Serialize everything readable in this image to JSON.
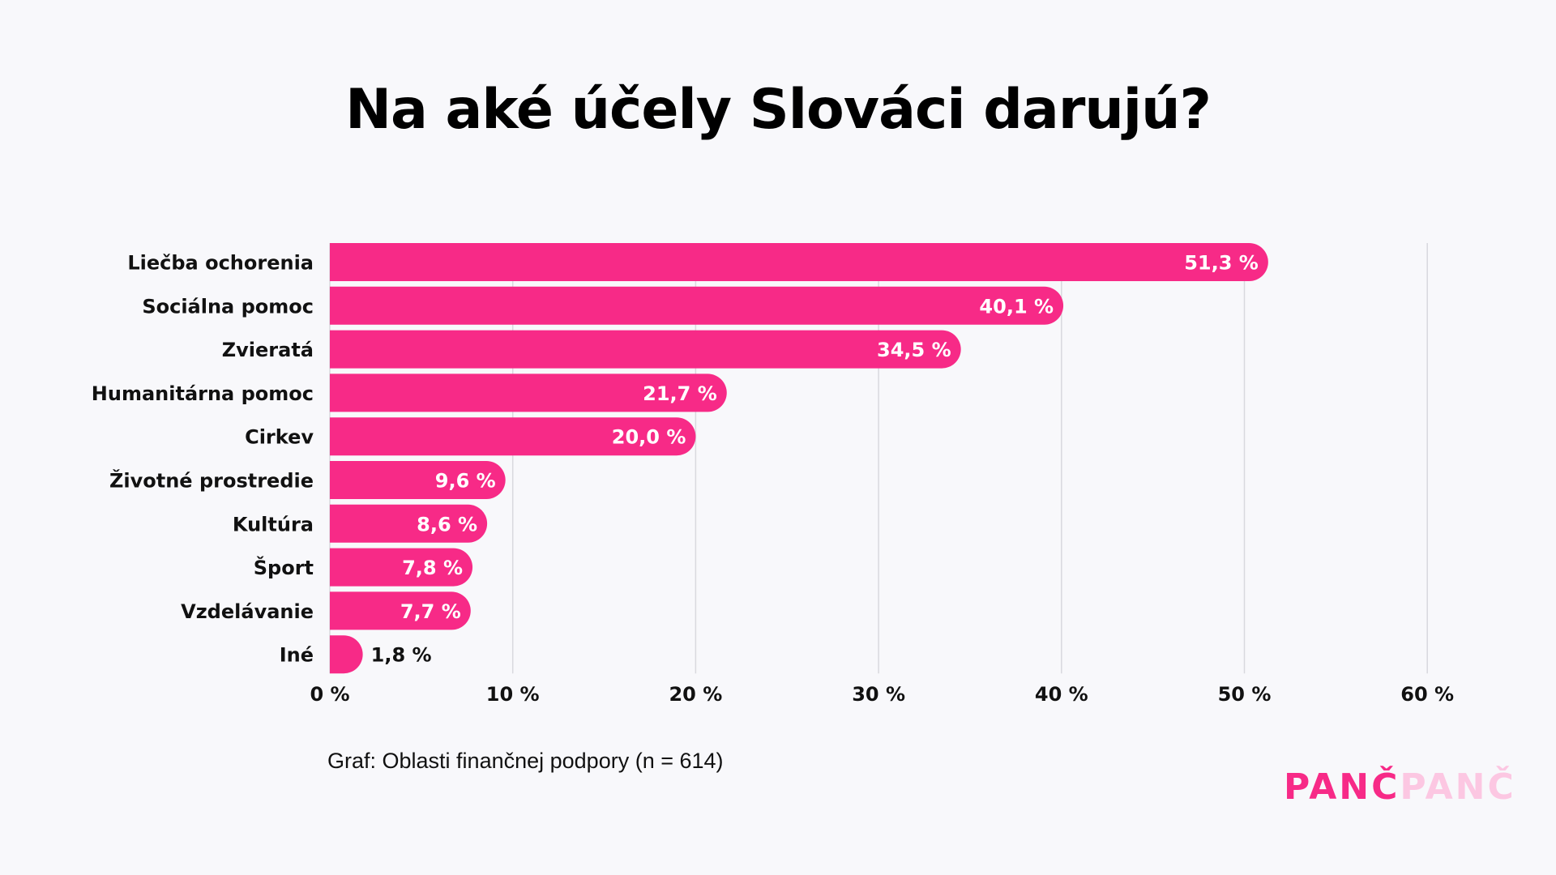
{
  "title": "Na aké účely Slováci darujú?",
  "caption": "Graf: Oblasti finančnej podpory  (n = 614)",
  "logo": {
    "part1": "PANČ",
    "part2": "PANČ"
  },
  "colors": {
    "bar": "#f72a87",
    "grid": "#d9d9de",
    "logo_light": "#fcc7e2",
    "background": "#f8f8fb"
  },
  "chart_data": {
    "type": "bar",
    "orientation": "horizontal",
    "title": "Na aké účely Slováci darujú?",
    "xlabel": "",
    "ylabel": "",
    "xlim": [
      0,
      60
    ],
    "grid": true,
    "categories": [
      "Liečba ochorenia",
      "Sociálna pomoc",
      "Zvieratá",
      "Humanitárna pomoc",
      "Cirkev",
      "Životné prostredie",
      "Kultúra",
      "Šport",
      "Vzdelávanie",
      "Iné"
    ],
    "values": [
      51.3,
      40.1,
      34.5,
      21.7,
      20.0,
      9.6,
      8.6,
      7.8,
      7.7,
      1.8
    ],
    "value_labels": [
      "51,3 %",
      "40,1 %",
      "34,5 %",
      "21,7 %",
      "20,0 %",
      "9,6 %",
      "8,6 %",
      "7,8 %",
      "7,7 %",
      "1,8 %"
    ],
    "ticks": [
      0,
      10,
      20,
      30,
      40,
      50,
      60
    ],
    "tick_labels": [
      "0 %",
      "10 %",
      "20 %",
      "30 %",
      "40 %",
      "50 %",
      "60 %"
    ]
  }
}
